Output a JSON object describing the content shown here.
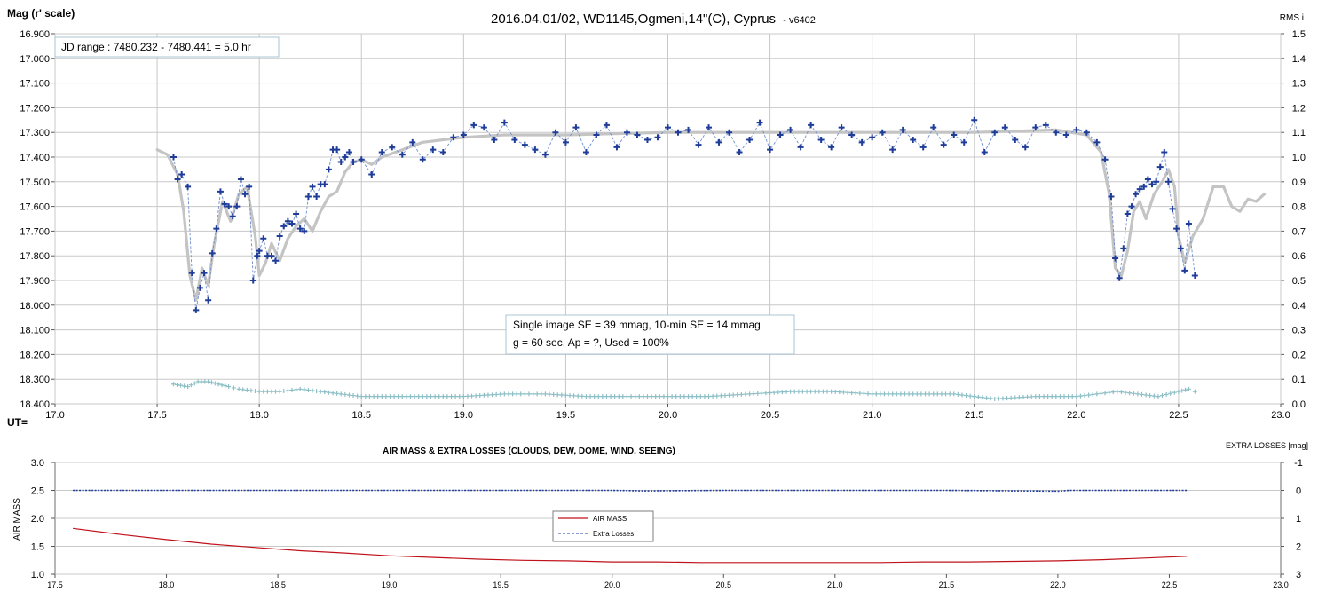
{
  "colors": {
    "magnitude_points": "#1f3c99",
    "model_curve": "#c4c4c4",
    "rms_points": "#8dbfc6",
    "air_mass": "#c0121b",
    "extra_losses": "#1f3c99",
    "grid": "#c8c8c8"
  },
  "chart_data": [
    {
      "type": "line",
      "title": "2016.04.01/02,  WD1145,Ogmeni,14\"(C),  Cyprus",
      "title_suffix": "- v6402",
      "ylabel": "Mag (r' scale)",
      "y2label": "RMS i",
      "xlabel": "UT=",
      "jd_range": "JD range  : 7480.232 - 7480.441  = 5.0 hr",
      "annotation": [
        "Single image SE = 39 mmag, 10-min SE = 14 mmag",
        "g = 60 sec, Ap = ?, Used = 100%"
      ],
      "xlim": [
        17.0,
        23.0
      ],
      "ylim": [
        16.9,
        18.4
      ],
      "y_inverted": true,
      "y2lim": [
        0.0,
        1.5
      ],
      "x_ticks": [
        "17.0",
        "17.5",
        "18.0",
        "18.5",
        "19.0",
        "19.5",
        "20.0",
        "20.5",
        "21.0",
        "21.5",
        "22.0",
        "22.5",
        "23.0"
      ],
      "y_ticks": [
        "16.900",
        "17.000",
        "17.100",
        "17.200",
        "17.300",
        "17.400",
        "17.500",
        "17.600",
        "17.700",
        "17.800",
        "17.900",
        "18.000",
        "18.100",
        "18.200",
        "18.300",
        "18.400"
      ],
      "y2_ticks": [
        "1.5",
        "1.4",
        "1.3",
        "1.2",
        "1.1",
        "1.0",
        "0.9",
        "0.8",
        "0.7",
        "0.6",
        "0.5",
        "0.4",
        "0.3",
        "0.2",
        "0.1",
        "0.0"
      ],
      "grid": true,
      "series": [
        {
          "style": "markers-dashed",
          "x": [
            17.58,
            17.6,
            17.62,
            17.65,
            17.67,
            17.69,
            17.71,
            17.73,
            17.75,
            17.77,
            17.79,
            17.81,
            17.83,
            17.85,
            17.87,
            17.89,
            17.91,
            17.93,
            17.95,
            17.97,
            17.99,
            18.0,
            18.02,
            18.04,
            18.06,
            18.08,
            18.1,
            18.12,
            18.14,
            18.16,
            18.18,
            18.2,
            18.22,
            18.24,
            18.26,
            18.28,
            18.3,
            18.32,
            18.34,
            18.36,
            18.38,
            18.4,
            18.42,
            18.44,
            18.46,
            18.5,
            18.55,
            18.6,
            18.65,
            18.7,
            18.75,
            18.8,
            18.85,
            18.9,
            18.95,
            19.0,
            19.05,
            19.1,
            19.15,
            19.2,
            19.25,
            19.3,
            19.35,
            19.4,
            19.45,
            19.5,
            19.55,
            19.6,
            19.65,
            19.7,
            19.75,
            19.8,
            19.85,
            19.9,
            19.95,
            20.0,
            20.05,
            20.1,
            20.15,
            20.2,
            20.25,
            20.3,
            20.35,
            20.4,
            20.45,
            20.5,
            20.55,
            20.6,
            20.65,
            20.7,
            20.75,
            20.8,
            20.85,
            20.9,
            20.95,
            21.0,
            21.05,
            21.1,
            21.15,
            21.2,
            21.25,
            21.3,
            21.35,
            21.4,
            21.45,
            21.5,
            21.55,
            21.6,
            21.65,
            21.7,
            21.75,
            21.8,
            21.85,
            21.9,
            21.95,
            22.0,
            22.05,
            22.1,
            22.14,
            22.17,
            22.19,
            22.21,
            22.23,
            22.25,
            22.27,
            22.29,
            22.31,
            22.33,
            22.35,
            22.37,
            22.39,
            22.41,
            22.43,
            22.45,
            22.47,
            22.49,
            22.51,
            22.53,
            22.55,
            22.58
          ],
          "y": [
            17.4,
            17.49,
            17.47,
            17.52,
            17.87,
            18.02,
            17.93,
            17.87,
            17.98,
            17.79,
            17.69,
            17.54,
            17.59,
            17.6,
            17.64,
            17.6,
            17.49,
            17.55,
            17.52,
            17.9,
            17.8,
            17.78,
            17.73,
            17.8,
            17.8,
            17.82,
            17.72,
            17.68,
            17.66,
            17.67,
            17.63,
            17.69,
            17.7,
            17.56,
            17.52,
            17.56,
            17.51,
            17.51,
            17.45,
            17.37,
            17.37,
            17.42,
            17.4,
            17.38,
            17.42,
            17.41,
            17.47,
            17.38,
            17.36,
            17.39,
            17.34,
            17.41,
            17.37,
            17.38,
            17.32,
            17.31,
            17.27,
            17.28,
            17.33,
            17.26,
            17.33,
            17.35,
            17.37,
            17.39,
            17.3,
            17.34,
            17.28,
            17.38,
            17.31,
            17.27,
            17.36,
            17.3,
            17.31,
            17.33,
            17.32,
            17.28,
            17.3,
            17.29,
            17.35,
            17.28,
            17.34,
            17.3,
            17.38,
            17.33,
            17.26,
            17.37,
            17.31,
            17.29,
            17.36,
            17.27,
            17.33,
            17.36,
            17.28,
            17.31,
            17.34,
            17.32,
            17.3,
            17.37,
            17.29,
            17.33,
            17.36,
            17.28,
            17.35,
            17.31,
            17.34,
            17.25,
            17.38,
            17.3,
            17.28,
            17.33,
            17.36,
            17.28,
            17.27,
            17.3,
            17.31,
            17.29,
            17.3,
            17.34,
            17.41,
            17.56,
            17.81,
            17.89,
            17.77,
            17.63,
            17.6,
            17.55,
            17.53,
            17.52,
            17.49,
            17.51,
            17.5,
            17.44,
            17.38,
            17.5,
            17.61,
            17.69,
            17.77,
            17.86,
            17.67,
            17.88
          ]
        },
        {
          "style": "smooth-line",
          "x": [
            17.5,
            17.55,
            17.6,
            17.63,
            17.66,
            17.69,
            17.72,
            17.75,
            17.78,
            17.82,
            17.86,
            17.9,
            17.94,
            17.98,
            18.0,
            18.03,
            18.06,
            18.1,
            18.14,
            18.18,
            18.22,
            18.26,
            18.3,
            18.34,
            18.38,
            18.42,
            18.46,
            18.5,
            18.55,
            18.6,
            18.7,
            18.8,
            19.0,
            19.2,
            19.5,
            20.0,
            20.5,
            21.0,
            21.5,
            21.9,
            22.05,
            22.12,
            22.16,
            22.19,
            22.22,
            22.25,
            22.28,
            22.31,
            22.34,
            22.38,
            22.42,
            22.45,
            22.48,
            22.5,
            22.53,
            22.57,
            22.62,
            22.67,
            22.72,
            22.76,
            22.8,
            22.84,
            22.88,
            22.92
          ],
          "y": [
            17.37,
            17.39,
            17.47,
            17.62,
            17.88,
            17.98,
            17.85,
            17.92,
            17.75,
            17.58,
            17.66,
            17.55,
            17.52,
            17.72,
            17.88,
            17.83,
            17.75,
            17.82,
            17.73,
            17.68,
            17.65,
            17.7,
            17.62,
            17.56,
            17.54,
            17.46,
            17.42,
            17.41,
            17.43,
            17.4,
            17.37,
            17.34,
            17.32,
            17.31,
            17.31,
            17.3,
            17.3,
            17.3,
            17.3,
            17.29,
            17.31,
            17.38,
            17.55,
            17.85,
            17.88,
            17.78,
            17.62,
            17.58,
            17.65,
            17.55,
            17.5,
            17.45,
            17.52,
            17.72,
            17.83,
            17.72,
            17.65,
            17.52,
            17.52,
            17.6,
            17.62,
            17.57,
            17.58,
            17.55
          ]
        },
        {
          "style": "rms-markers",
          "axis": "right",
          "x": [
            17.58,
            17.65,
            17.7,
            17.75,
            17.8,
            17.85,
            17.9,
            18.0,
            18.1,
            18.2,
            18.3,
            18.4,
            18.5,
            18.6,
            18.8,
            19.0,
            19.2,
            19.4,
            19.6,
            19.8,
            20.0,
            20.2,
            20.4,
            20.6,
            20.8,
            21.0,
            21.2,
            21.4,
            21.6,
            21.8,
            22.0,
            22.1,
            22.2,
            22.3,
            22.4,
            22.5,
            22.55,
            22.58
          ],
          "y": [
            0.08,
            0.07,
            0.09,
            0.09,
            0.08,
            0.07,
            0.06,
            0.05,
            0.05,
            0.06,
            0.05,
            0.04,
            0.03,
            0.03,
            0.03,
            0.03,
            0.04,
            0.04,
            0.03,
            0.03,
            0.03,
            0.03,
            0.04,
            0.05,
            0.05,
            0.04,
            0.04,
            0.04,
            0.02,
            0.03,
            0.03,
            0.04,
            0.05,
            0.04,
            0.03,
            0.05,
            0.06,
            0.05
          ]
        }
      ]
    },
    {
      "type": "line",
      "title": "AIR MASS & EXTRA LOSSES (CLOUDS, DEW, DOME, WIND, SEEING)",
      "ylabel": "AIR MASS",
      "y2label": "EXTRA LOSSES [mag]",
      "xlim": [
        17.5,
        23.0
      ],
      "ylim": [
        1.0,
        3.0
      ],
      "y2lim": [
        -1,
        3
      ],
      "y2_inverted": true,
      "x_ticks": [
        "17.5",
        "18.0",
        "18.5",
        "19.0",
        "19.5",
        "20.0",
        "20.5",
        "21.0",
        "21.5",
        "22.0",
        "22.5",
        "23.0"
      ],
      "y_ticks": [
        "3.0",
        "2.5",
        "2.0",
        "1.5",
        "1.0"
      ],
      "y2_ticks": [
        "-1",
        "0",
        "1",
        "2",
        "3"
      ],
      "grid": true,
      "legend": [
        "AIR MASS",
        "Extra Losses"
      ],
      "legend_position": "center",
      "series": [
        {
          "name": "AIR MASS",
          "x": [
            17.58,
            17.8,
            18.0,
            18.2,
            18.4,
            18.6,
            18.8,
            19.0,
            19.2,
            19.4,
            19.6,
            19.8,
            20.0,
            20.2,
            20.4,
            20.6,
            20.8,
            21.0,
            21.2,
            21.4,
            21.6,
            21.8,
            22.0,
            22.2,
            22.4,
            22.58
          ],
          "y": [
            1.82,
            1.71,
            1.62,
            1.54,
            1.48,
            1.42,
            1.38,
            1.33,
            1.3,
            1.27,
            1.25,
            1.24,
            1.22,
            1.22,
            1.21,
            1.21,
            1.21,
            1.21,
            1.21,
            1.22,
            1.22,
            1.23,
            1.24,
            1.26,
            1.29,
            1.32
          ]
        },
        {
          "name": "Extra Losses",
          "axis": "right",
          "x": [
            17.58,
            18.0,
            18.5,
            19.0,
            19.5,
            20.0,
            20.14,
            20.5,
            21.0,
            21.5,
            22.0,
            22.05,
            22.5,
            22.58
          ],
          "y": [
            0,
            0,
            0,
            0,
            0,
            0,
            0.02,
            0,
            0,
            0,
            0.03,
            0,
            0,
            0
          ]
        }
      ]
    }
  ]
}
